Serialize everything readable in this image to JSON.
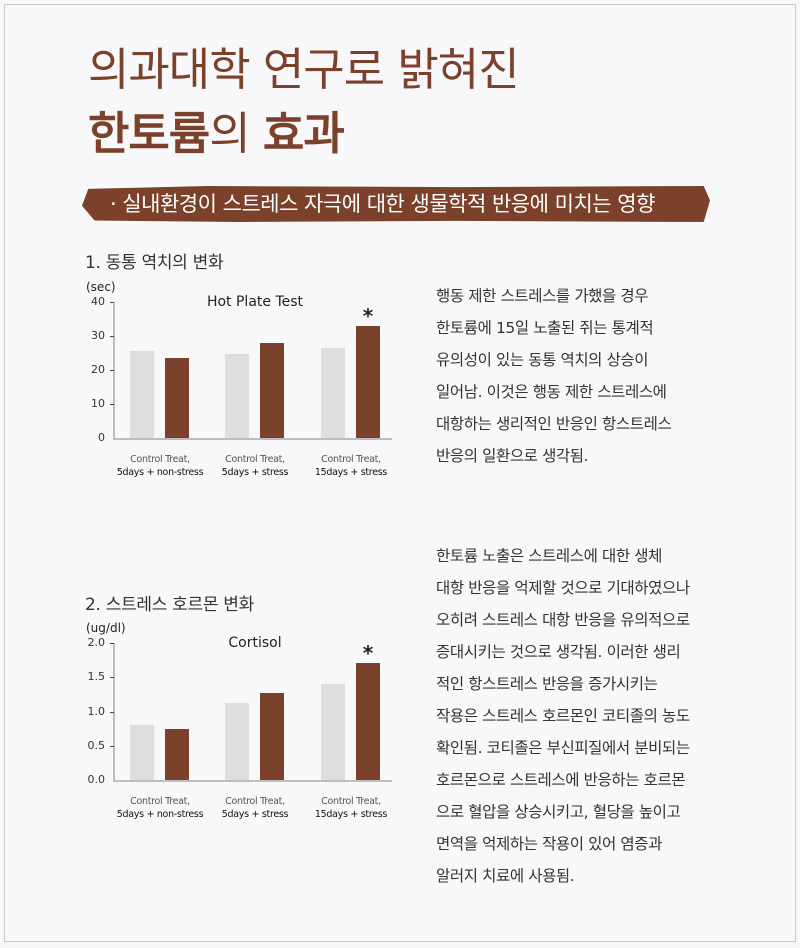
{
  "header": {
    "title_line1": "의과대학 연구로 밝혀진",
    "title_line2_bold1": "한토륨",
    "title_line2_thin": "의 ",
    "title_line2_bold2": "효과",
    "banner": "· 실내환경이 스트레스 자극에 대한 생물학적 반응에 미치는 영향"
  },
  "colors": {
    "accent": "#7b412a",
    "control_bar": "#dedede",
    "background": "#f8f8fa"
  },
  "sections": [
    {
      "heading": "1. 동통 역치의 변화",
      "paragraph": [
        "행동 제한 스트레스를 가했을 경우",
        "한토륨에 15일 노출된 쥐는 통계적",
        "유의성이 있는 동통 역치의 상승이",
        "일어남. 이것은 행동 제한 스트레스에",
        "대항하는 생리적인 반응인 항스트레스",
        "반응의 일환으로 생각됨."
      ]
    },
    {
      "heading": "2. 스트레스 호르몬 변화",
      "paragraph": [
        "한토륨 노출은 스트레스에 대한 생체",
        "대항 반응을 억제할 것으로 기대하였으나",
        "오히려 스트레스 대항 반응을 유의적으로",
        "증대시키는 것으로 생각됨. 이러한 생리",
        "적인 항스트레스 반응을 증가시키는",
        "작용은 스트레스 호르몬인 코티졸의 농도",
        "확인됨. 코티졸은 부신피질에서 분비되는",
        "호르몬으로 스트레스에 반응하는 호르몬",
        "으로 혈압을 상승시키고, 혈당을 높이고",
        "면역을 억제하는 작용이 있어 염증과",
        "알러지 치료에 사용됨."
      ]
    }
  ],
  "chart_data": [
    {
      "type": "bar",
      "title": "Hot Plate Test",
      "ylabel": "(sec)",
      "xlabel": "",
      "ylim": [
        0,
        40
      ],
      "yticks": [
        "40",
        "30",
        "20",
        "10",
        "0"
      ],
      "categories": [
        {
          "line1": "Control Treat,",
          "line2": "5days + non-stress"
        },
        {
          "line1": "Control Treat,",
          "line2": "5days + stress"
        },
        {
          "line1": "Control Treat,",
          "line2": "15days + stress"
        }
      ],
      "series": [
        {
          "name": "Control",
          "values": [
            25.7,
            24.7,
            26.5
          ]
        },
        {
          "name": "Treat",
          "values": [
            23.5,
            28.0,
            33.0
          ]
        }
      ],
      "annotations": [
        {
          "category": 2,
          "series": "Treat",
          "text": "*"
        }
      ],
      "grid": false,
      "legend": "none"
    },
    {
      "type": "bar",
      "title": "Cortisol",
      "ylabel": "(ug/dl)",
      "xlabel": "",
      "ylim": [
        0,
        2.0
      ],
      "yticks": [
        "2.0",
        "1.5",
        "1.0",
        "0.5",
        "0.0"
      ],
      "categories": [
        {
          "line1": "Control Treat,",
          "line2": "5days + non-stress"
        },
        {
          "line1": "Control Treat,",
          "line2": "5days + stress"
        },
        {
          "line1": "Control Treat,",
          "line2": "15days + stress"
        }
      ],
      "series": [
        {
          "name": "Control",
          "values": [
            0.8,
            1.12,
            1.4
          ]
        },
        {
          "name": "Treat",
          "values": [
            0.74,
            1.27,
            1.71
          ]
        }
      ],
      "annotations": [
        {
          "category": 2,
          "series": "Treat",
          "text": "*"
        }
      ],
      "grid": false,
      "legend": "none"
    }
  ]
}
